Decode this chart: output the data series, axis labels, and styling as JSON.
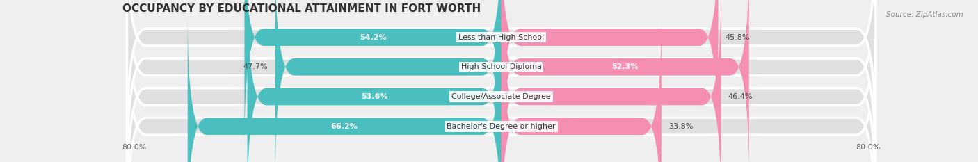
{
  "title": "OCCUPANCY BY EDUCATIONAL ATTAINMENT IN FORT WORTH",
  "source": "Source: ZipAtlas.com",
  "categories": [
    "Less than High School",
    "High School Diploma",
    "College/Associate Degree",
    "Bachelor's Degree or higher"
  ],
  "owner_values": [
    54.2,
    47.7,
    53.6,
    66.2
  ],
  "renter_values": [
    45.8,
    52.3,
    46.4,
    33.8
  ],
  "owner_color": "#4bbfbf",
  "renter_color": "#f48fb1",
  "axis_limit": 80.0,
  "bar_height": 0.58,
  "bg_color": "#efefef",
  "bar_bg_color": "#e0e0e0",
  "title_fontsize": 11,
  "label_fontsize": 8,
  "pct_fontsize": 8,
  "tick_fontsize": 8,
  "source_fontsize": 7.5
}
